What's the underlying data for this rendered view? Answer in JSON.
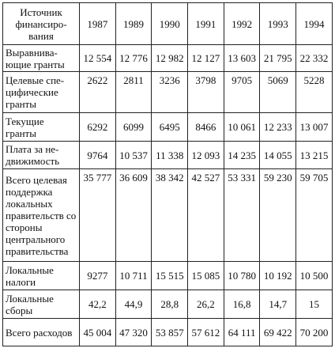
{
  "table": {
    "header": {
      "source": "Источник финансиро-вания",
      "years": [
        "1987",
        "1989",
        "1990",
        "1991",
        "1992",
        "1993",
        "1994"
      ]
    },
    "rows": [
      {
        "label": "Выравнива-ющие гранты",
        "values": [
          "12 554",
          "12 776",
          "12 982",
          "12 127",
          "13 603",
          "21 795",
          "22 332"
        ]
      },
      {
        "label": "Целевые спе-цифические гранты",
        "values": [
          "2622",
          "2811",
          "3236",
          "3798",
          "9705",
          "5069",
          "5228"
        ]
      },
      {
        "label": "Текущие гранты",
        "values": [
          "6292",
          "6099",
          "6495",
          "8466",
          "10 061",
          "12 233",
          "13 007"
        ]
      },
      {
        "label": "Плата за не-движимость",
        "values": [
          "9764",
          "10 537",
          "11 338",
          "12 093",
          "14 235",
          "14 055",
          "13 215"
        ]
      },
      {
        "label": "Всего целевая поддержка локальных правительств со стороны центрального правительства",
        "values": [
          "35 777",
          "36 609",
          "38 342",
          "42 527",
          "53 331",
          "59 230",
          "59 705"
        ]
      },
      {
        "label": "Локальные налоги",
        "values": [
          "9277",
          "10 711",
          "15 515",
          "15 085",
          "10 780",
          "10 192",
          "10 500"
        ]
      },
      {
        "label": "Локальные сборы",
        "values": [
          "42,2",
          "44,9",
          "28,8",
          "26,2",
          "16,8",
          "14,7",
          "15"
        ]
      },
      {
        "label": "Всего расходов",
        "values": [
          "45 004",
          "47 320",
          "53 857",
          "57 612",
          "64 111",
          "69 422",
          "70 200"
        ]
      }
    ]
  }
}
